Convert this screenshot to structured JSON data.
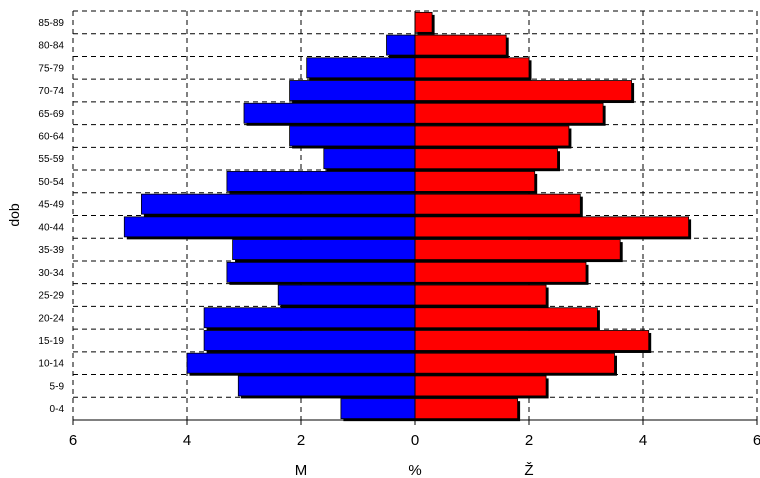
{
  "chart_data": {
    "type": "bar",
    "orientation": "horizontal",
    "layout": "population-pyramid",
    "ylabel": "dob",
    "xlabel_left": "M",
    "xlabel_center": "%",
    "xlabel_right": "Ž",
    "xlim": [
      -6,
      6
    ],
    "x_ticks": [
      -6,
      -4,
      -2,
      0,
      2,
      4,
      6
    ],
    "x_tick_labels": [
      "6",
      "4",
      "2",
      "0",
      "2",
      "4",
      "6"
    ],
    "grid": true,
    "grid_style": "dashed",
    "legend": "none",
    "categories": [
      "0-4",
      "5-9",
      "10-14",
      "15-19",
      "20-24",
      "25-29",
      "30-34",
      "35-39",
      "40-44",
      "45-49",
      "50-54",
      "55-59",
      "60-64",
      "65-69",
      "70-74",
      "75-79",
      "80-84",
      "85-89"
    ],
    "series": [
      {
        "key": "male",
        "color": "#0000ff",
        "values": [
          1.3,
          3.1,
          4.0,
          3.7,
          3.7,
          2.4,
          3.3,
          3.2,
          5.1,
          4.8,
          3.3,
          1.6,
          2.2,
          3.0,
          2.2,
          1.9,
          0.5,
          0.0
        ]
      },
      {
        "key": "female",
        "color": "#ff0000",
        "values": [
          1.8,
          2.3,
          3.5,
          4.1,
          3.2,
          2.3,
          3.0,
          3.6,
          4.8,
          2.9,
          2.1,
          2.5,
          2.7,
          3.3,
          3.8,
          2.0,
          1.6,
          0.3
        ]
      }
    ]
  }
}
